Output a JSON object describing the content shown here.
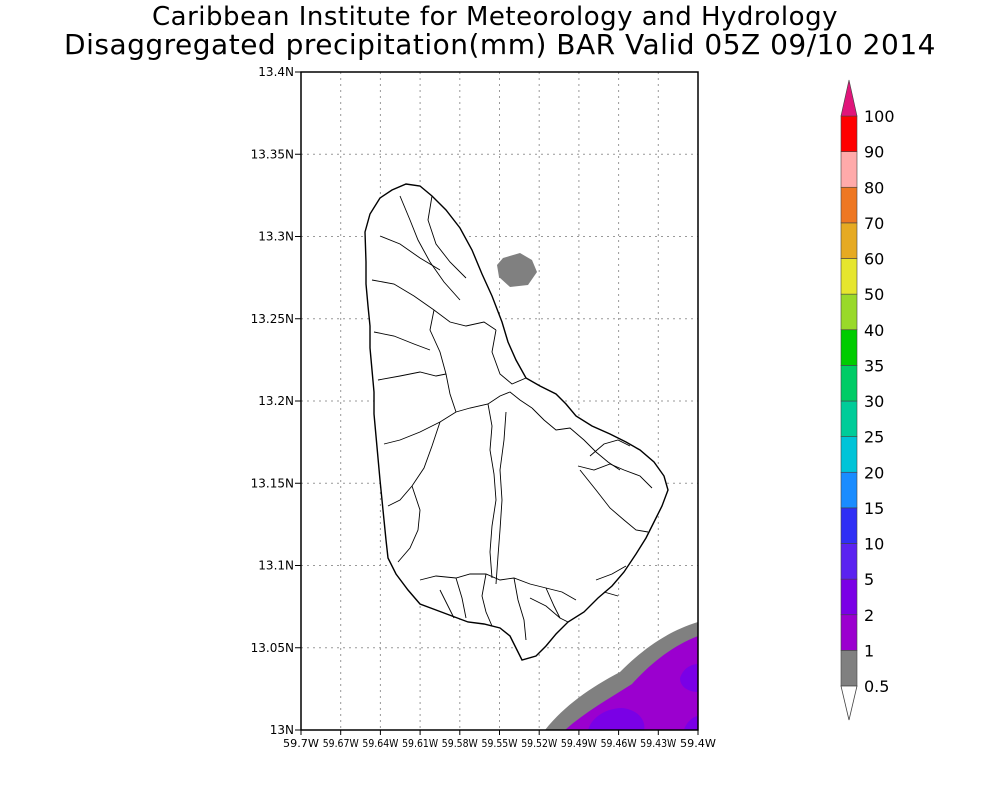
{
  "header": {
    "title": "Caribbean Institute for Meteorology and Hydrology",
    "subtitle": "Disaggregated precipitation(mm) BAR Valid 05Z 09/10 2014"
  },
  "map": {
    "lat_range": [
      13.0,
      13.4
    ],
    "lon_range": [
      -59.7,
      -59.4
    ],
    "lat_ticks": [
      "13N",
      "13.05N",
      "13.1N",
      "13.15N",
      "13.2N",
      "13.25N",
      "13.3N",
      "13.35N",
      "13.4N"
    ],
    "lon_ticks": [
      "59.7W",
      "59.67W",
      "59.64W",
      "59.61W",
      "59.58W",
      "59.55W",
      "59.52W",
      "59.49W",
      "59.46W",
      "59.43W",
      "59.4W"
    ],
    "grid": true,
    "land_color": "#ffffff",
    "outline_color": "#000000"
  },
  "colorbar": {
    "labels": [
      "0.5",
      "1",
      "2",
      "5",
      "10",
      "15",
      "20",
      "25",
      "30",
      "35",
      "40",
      "50",
      "60",
      "70",
      "80",
      "90",
      "100"
    ],
    "colors": [
      "#808080",
      "#9b00cf",
      "#7a00e6",
      "#5a22f0",
      "#2f2ff5",
      "#1a8cff",
      "#00c4d8",
      "#00cc99",
      "#00cc66",
      "#00cc00",
      "#99d92a",
      "#e6e62e",
      "#e6aa22",
      "#ee7722",
      "#ffaaaa",
      "#ff0000",
      "#ee3355"
    ],
    "top_color": "#e0157a",
    "bottom_color": "#ffffff"
  }
}
